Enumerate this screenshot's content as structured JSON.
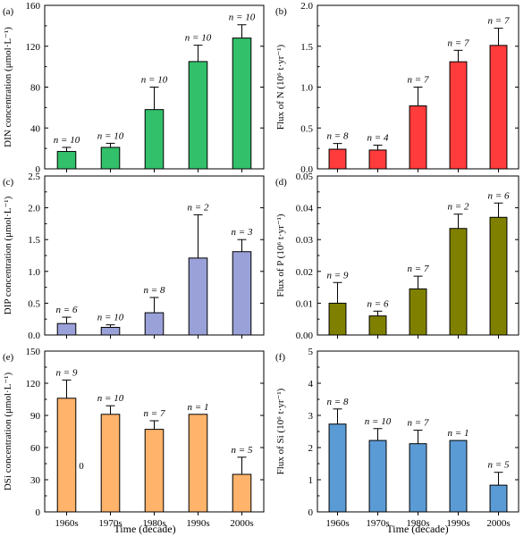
{
  "x_axis_title": "Time (decade)",
  "chart_data": [
    {
      "type": "bar",
      "panel": "(a)",
      "ylabel": "DIN concentration (μmol·L⁻¹)",
      "categories": [
        "1960s",
        "1970s",
        "1980s",
        "1990s",
        "2000s"
      ],
      "values": [
        17,
        21,
        58,
        105,
        128
      ],
      "errors": [
        4,
        4,
        22,
        16,
        13
      ],
      "n_labels": [
        "n = 10",
        "n = 10",
        "n = 10",
        "n = 10",
        "n = 10"
      ],
      "ylim": [
        0,
        160
      ],
      "yticks": [
        0,
        40,
        80,
        120,
        160
      ],
      "color": "#33c06b",
      "show_xticklabels": false
    },
    {
      "type": "bar",
      "panel": "(b)",
      "ylabel": "Flux of N (10⁶ t·yr⁻¹)",
      "categories": [
        "1960s",
        "1970s",
        "1980s",
        "1990s",
        "2000s"
      ],
      "values": [
        0.24,
        0.23,
        0.77,
        1.31,
        1.51
      ],
      "errors": [
        0.07,
        0.06,
        0.23,
        0.14,
        0.21
      ],
      "n_labels": [
        "n = 8",
        "n = 4",
        "n = 7",
        "n = 7",
        "n = 7"
      ],
      "ylim": [
        0,
        2.0
      ],
      "yticks": [
        0.0,
        0.5,
        1.0,
        1.5,
        2.0
      ],
      "color": "#ff3b3b",
      "show_xticklabels": false
    },
    {
      "type": "bar",
      "panel": "(c)",
      "ylabel": "DIP concentration (μmol·L⁻¹)",
      "categories": [
        "1960s",
        "1970s",
        "1980s",
        "1990s",
        "2000s"
      ],
      "values": [
        0.18,
        0.12,
        0.35,
        1.21,
        1.31
      ],
      "errors": [
        0.1,
        0.04,
        0.24,
        0.68,
        0.19
      ],
      "n_labels": [
        "n = 6",
        "n = 10",
        "n = 8",
        "n = 2",
        "n = 3"
      ],
      "ylim": [
        0,
        2.5
      ],
      "yticks": [
        0.0,
        0.5,
        1.0,
        1.5,
        2.0,
        2.5
      ],
      "color": "#9aa0d8",
      "show_xticklabels": false
    },
    {
      "type": "bar",
      "panel": "(d)",
      "ylabel": "Flux of P (10⁶ t·yr⁻¹)",
      "categories": [
        "1960s",
        "1970s",
        "1980s",
        "1990s",
        "2000s"
      ],
      "values": [
        0.01,
        0.006,
        0.0145,
        0.0335,
        0.037
      ],
      "errors": [
        0.0065,
        0.0015,
        0.004,
        0.0045,
        0.0045
      ],
      "n_labels": [
        "n = 9",
        "n = 6",
        "n = 7",
        "n = 2",
        "n = 6"
      ],
      "ylim": [
        0,
        0.05
      ],
      "yticks": [
        0.0,
        0.01,
        0.02,
        0.03,
        0.04,
        0.05
      ],
      "color": "#808000",
      "show_xticklabels": false
    },
    {
      "type": "bar",
      "panel": "(e)",
      "ylabel": "DSi concentration (μmol·L⁻¹)",
      "categories": [
        "1960s",
        "1970s",
        "1980s",
        "1990s",
        "2000s"
      ],
      "values": [
        106,
        91,
        77,
        91,
        35
      ],
      "errors": [
        17,
        8,
        8,
        0,
        16
      ],
      "n_labels": [
        "n = 9",
        "n = 10",
        "n = 7",
        "n = 1",
        "n = 5"
      ],
      "ylim": [
        0,
        150
      ],
      "yticks": [
        0,
        30,
        60,
        90,
        120,
        150
      ],
      "color": "#ffb36b",
      "annotation": "0",
      "show_xticklabels": true
    },
    {
      "type": "bar",
      "panel": "(f)",
      "ylabel": "Flux of Si (10⁶ t·yr⁻¹)",
      "categories": [
        "1960s",
        "1970s",
        "1980s",
        "1990s",
        "2000s"
      ],
      "values": [
        2.73,
        2.22,
        2.12,
        2.22,
        0.83
      ],
      "errors": [
        0.47,
        0.37,
        0.42,
        0.0,
        0.4
      ],
      "n_labels": [
        "n = 8",
        "n = 10",
        "n = 7",
        "n = 1",
        "n = 5"
      ],
      "ylim": [
        0,
        5
      ],
      "yticks": [
        0,
        1,
        2,
        3,
        4,
        5
      ],
      "color": "#5b9bd5",
      "show_xticklabels": true
    }
  ]
}
